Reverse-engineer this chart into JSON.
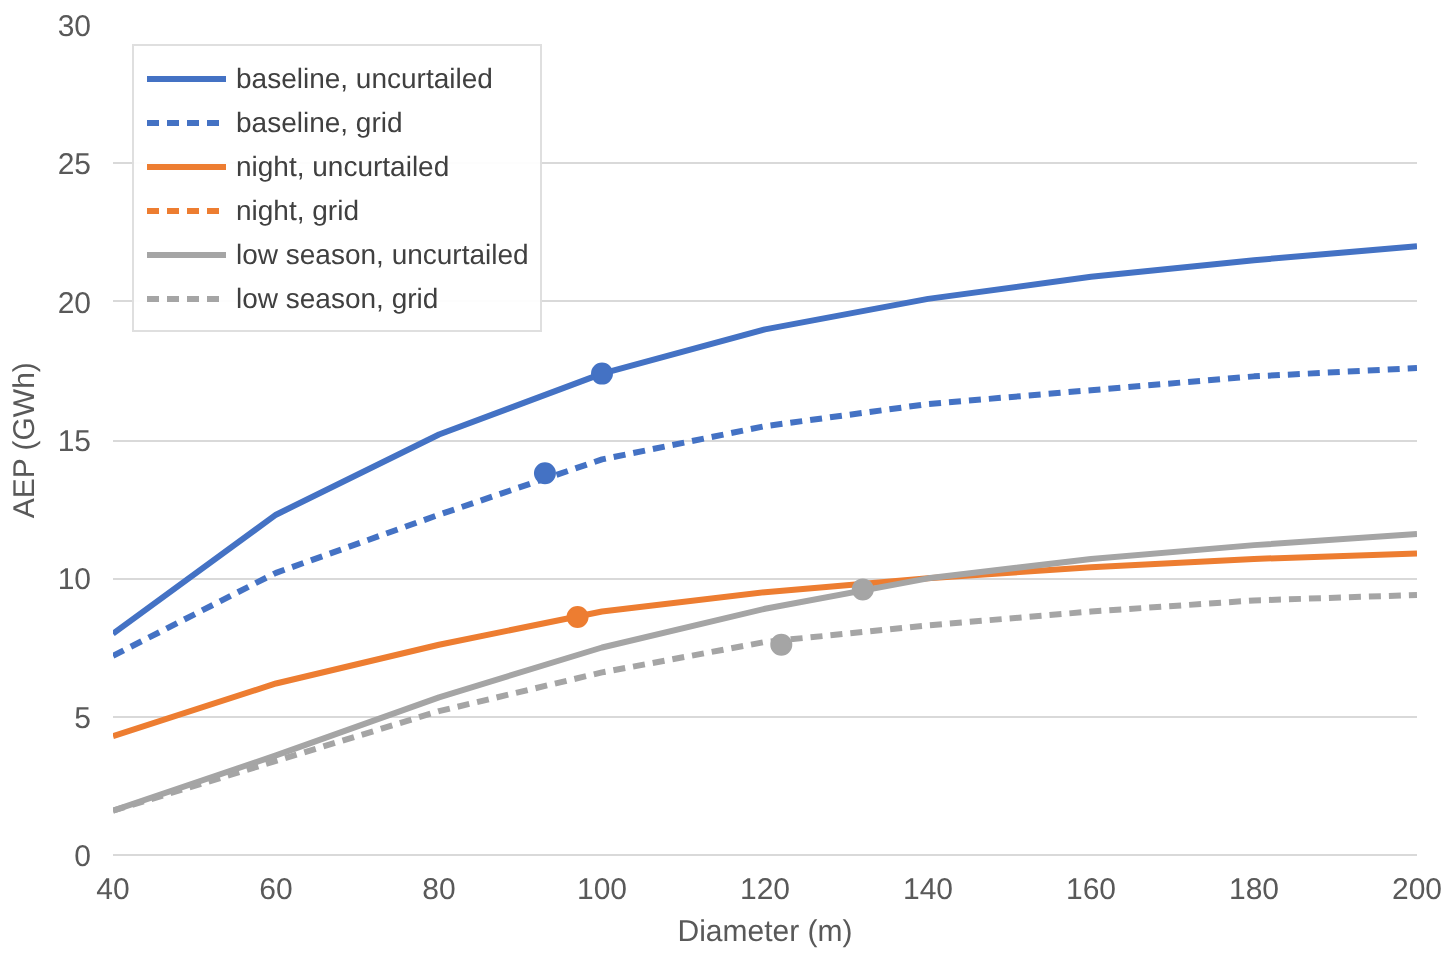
{
  "chart_data": {
    "type": "line",
    "xlabel": "Diameter (m)",
    "ylabel": "AEP (GWh)",
    "x": [
      40,
      60,
      80,
      100,
      120,
      140,
      160,
      180,
      200
    ],
    "xlim": [
      40,
      200
    ],
    "xticks": [
      40,
      60,
      80,
      100,
      120,
      140,
      160,
      180,
      200
    ],
    "ylim": [
      0,
      30
    ],
    "yticks": [
      0,
      5,
      10,
      15,
      20,
      25,
      30
    ],
    "grid": "y",
    "legend": "top left",
    "marker": "none",
    "series": [
      {
        "name": "baseline, uncurtailed",
        "color": "#4472c4",
        "line_style": "solid",
        "values": [
          8.0,
          12.3,
          15.2,
          17.4,
          19.0,
          20.1,
          20.9,
          21.5,
          22.0
        ]
      },
      {
        "name": "baseline, grid",
        "color": "#4472c4",
        "line_style": "dashed",
        "values": [
          7.2,
          10.2,
          12.3,
          14.3,
          15.5,
          16.3,
          16.8,
          17.3,
          17.6
        ]
      },
      {
        "name": "night, uncurtailed",
        "color": "#ed7d31",
        "line_style": "solid",
        "values": [
          4.3,
          6.2,
          7.6,
          8.8,
          9.5,
          10.0,
          10.4,
          10.7,
          10.9
        ]
      },
      {
        "name": "night, grid",
        "color": "#ed7d31",
        "line_style": "dashed",
        "values": [
          null,
          null,
          null,
          null,
          null,
          null,
          null,
          null,
          null
        ]
      },
      {
        "name": "low season, uncurtailed",
        "color": "#a5a5a5",
        "line_style": "solid",
        "values": [
          1.6,
          3.6,
          5.7,
          7.5,
          8.9,
          10.0,
          10.7,
          11.2,
          11.6
        ]
      },
      {
        "name": "low season, grid",
        "color": "#a5a5a5",
        "line_style": "dashed",
        "values": [
          1.6,
          3.4,
          5.2,
          6.6,
          7.7,
          8.3,
          8.8,
          9.2,
          9.4
        ]
      },
      {
        "type": "scatter",
        "marker": "circle",
        "color": "#4472c4",
        "x": [
          100,
          93
        ],
        "values": [
          17.4,
          13.8
        ]
      },
      {
        "type": "scatter",
        "marker": "circle",
        "color": "#ed7d31",
        "x": [
          97
        ],
        "values": [
          8.6
        ]
      },
      {
        "type": "scatter",
        "marker": "circle",
        "color": "#a5a5a5",
        "x": [
          132,
          122
        ],
        "values": [
          9.6,
          7.6
        ]
      }
    ]
  }
}
